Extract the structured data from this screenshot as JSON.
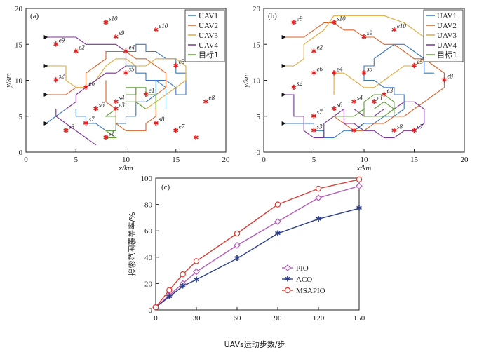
{
  "panel_labels": {
    "a": "(a)",
    "b": "(b)",
    "c": "(c)"
  },
  "x_axis_label": "x/km",
  "y_axis_label": "y/km",
  "legend_items": [
    "UAV1",
    "UAV2",
    "UAV3",
    "UAV4",
    "目标1"
  ],
  "series_colors": {
    "UAV1": "#3b78c2",
    "UAV2": "#d9622b",
    "UAV3": "#e2a93b",
    "UAV4": "#7b3296",
    "目标1": "#5f9e37"
  },
  "chart_data": [
    {
      "type": "line",
      "panel": "(a)",
      "xlim": [
        0,
        20
      ],
      "ylim": [
        0,
        20
      ],
      "xticks": [
        0,
        5,
        10,
        15,
        20
      ],
      "yticks": [
        0,
        5,
        10,
        15,
        20
      ],
      "xlabel": "x/km",
      "ylabel": "y/km",
      "legend_position": "top-right",
      "markers": [
        {
          "label": "s10",
          "x": 8,
          "y": 18
        },
        {
          "label": "s9",
          "x": 9,
          "y": 16
        },
        {
          "label": "e10",
          "x": 13,
          "y": 17
        },
        {
          "label": "e9",
          "x": 3,
          "y": 15
        },
        {
          "label": "e2",
          "x": 5,
          "y": 14
        },
        {
          "label": "e4",
          "x": 10,
          "y": 14
        },
        {
          "label": "e5",
          "x": 15,
          "y": 12
        },
        {
          "label": "s5",
          "x": 10,
          "y": 11
        },
        {
          "label": "s2",
          "x": 3,
          "y": 10
        },
        {
          "label": "e6",
          "x": 6,
          "y": 9
        },
        {
          "label": "e1",
          "x": 12,
          "y": 8
        },
        {
          "label": "e8",
          "x": 18,
          "y": 7
        },
        {
          "label": "s4",
          "x": 9,
          "y": 7
        },
        {
          "label": "s6",
          "x": 7,
          "y": 6
        },
        {
          "label": "e3",
          "x": 9,
          "y": 6
        },
        {
          "label": "s7",
          "x": 6,
          "y": 4
        },
        {
          "label": "s8",
          "x": 13,
          "y": 4
        },
        {
          "label": "s3",
          "x": 4,
          "y": 3
        },
        {
          "label": "e7",
          "x": 15,
          "y": 3
        },
        {
          "label": "s1",
          "x": 8,
          "y": 2
        },
        {
          "label": "",
          "x": 17,
          "y": 2
        }
      ],
      "series": [
        {
          "name": "UAV1",
          "x": [
            2,
            4,
            5,
            5,
            6,
            6,
            7,
            8,
            9,
            9,
            10,
            10,
            11,
            11,
            12,
            13,
            13,
            14,
            15,
            15,
            16,
            16,
            15,
            15,
            14,
            13,
            12,
            12,
            11,
            11,
            10,
            10,
            11,
            11,
            12,
            12,
            13,
            14,
            14
          ],
          "y": [
            4,
            6,
            6,
            5,
            5,
            4,
            4,
            3,
            3,
            4,
            4,
            5,
            5,
            7,
            7,
            8,
            10,
            10,
            9,
            8,
            8,
            11,
            11,
            13,
            13,
            14,
            14,
            15,
            15,
            14,
            14,
            12,
            12,
            11,
            11,
            10,
            10,
            9,
            6
          ]
        },
        {
          "name": "UAV2",
          "x": [
            2,
            4,
            5,
            6,
            6,
            7,
            8,
            8,
            9,
            10,
            11,
            12,
            13,
            14,
            14,
            13,
            13,
            12,
            12,
            11,
            10,
            9,
            9,
            8,
            8
          ],
          "y": [
            8,
            8,
            9,
            9,
            11,
            12,
            13,
            14,
            14,
            14,
            13,
            13,
            12,
            11,
            9,
            8,
            5,
            4,
            3,
            3,
            3,
            4,
            6,
            7,
            10
          ]
        },
        {
          "name": "UAV3",
          "x": [
            2,
            4,
            4,
            5,
            6,
            7,
            8,
            9,
            10,
            11,
            12,
            13,
            15,
            16,
            16,
            15,
            14,
            13,
            12,
            11,
            11
          ],
          "y": [
            12,
            12,
            10,
            9,
            9,
            10,
            12,
            13,
            13,
            12,
            12,
            13,
            13,
            12,
            10,
            9,
            8,
            7,
            6,
            7,
            9
          ]
        },
        {
          "name": "UAV4",
          "x": [
            2,
            5,
            6,
            7,
            9,
            10,
            10,
            9,
            8,
            6,
            5,
            5,
            4,
            3,
            3,
            4,
            5,
            6,
            7
          ],
          "y": [
            16,
            16,
            15,
            15,
            15,
            14,
            12,
            11,
            11,
            9,
            8,
            7,
            6,
            6,
            5,
            4,
            3,
            2,
            1
          ]
        },
        {
          "name": "目标1",
          "x": [
            8,
            9,
            8,
            9,
            9,
            8,
            9,
            10,
            10,
            11,
            11,
            12,
            12,
            13,
            13,
            12,
            11,
            10,
            10,
            11
          ],
          "y": [
            2,
            2,
            3,
            3,
            5,
            5,
            6,
            6,
            8,
            8,
            9,
            9,
            8,
            8,
            6,
            6,
            7,
            7,
            9,
            9
          ]
        }
      ]
    },
    {
      "type": "line",
      "panel": "(b)",
      "xlim": [
        0,
        20
      ],
      "ylim": [
        0,
        20
      ],
      "xticks": [
        0,
        5,
        10,
        15,
        20
      ],
      "yticks": [
        0,
        5,
        10,
        15,
        20
      ],
      "xlabel": "x/km",
      "ylabel": "y/km",
      "legend_position": "top-right",
      "markers": [
        {
          "label": "s10",
          "x": 7,
          "y": 18
        },
        {
          "label": "e9",
          "x": 3,
          "y": 18
        },
        {
          "label": "e10",
          "x": 13,
          "y": 17
        },
        {
          "label": "s9",
          "x": 10,
          "y": 16
        },
        {
          "label": "e2",
          "x": 5,
          "y": 14
        },
        {
          "label": "e5",
          "x": 15,
          "y": 12
        },
        {
          "label": "e6",
          "x": 5,
          "y": 11
        },
        {
          "label": "e4",
          "x": 7,
          "y": 11
        },
        {
          "label": "s5",
          "x": 10,
          "y": 11
        },
        {
          "label": "e8",
          "x": 18,
          "y": 10
        },
        {
          "label": "s2",
          "x": 3,
          "y": 9
        },
        {
          "label": "s4",
          "x": 9,
          "y": 7
        },
        {
          "label": "e1",
          "x": 11,
          "y": 7
        },
        {
          "label": "e3",
          "x": 12,
          "y": 8
        },
        {
          "label": "s6",
          "x": 7,
          "y": 6
        },
        {
          "label": "s7",
          "x": 5,
          "y": 5
        },
        {
          "label": "s3",
          "x": 5,
          "y": 3
        },
        {
          "label": "s1",
          "x": 9,
          "y": 3
        },
        {
          "label": "s8",
          "x": 13,
          "y": 3
        },
        {
          "label": "e7",
          "x": 15,
          "y": 3
        }
      ],
      "series": [
        {
          "name": "UAV1",
          "x": [
            2,
            5,
            5,
            6,
            6,
            7,
            8,
            9,
            10,
            11,
            12,
            13,
            14,
            14,
            13,
            13,
            12,
            11,
            10,
            10,
            11,
            11,
            12,
            13,
            14,
            15,
            16,
            16,
            17
          ],
          "y": [
            4,
            4,
            3,
            3,
            2,
            2,
            3,
            3,
            4,
            4,
            5,
            5,
            6,
            8,
            8,
            9,
            9,
            10,
            10,
            12,
            12,
            13,
            14,
            15,
            15,
            14,
            13,
            11,
            11
          ]
        },
        {
          "name": "UAV2",
          "x": [
            2,
            4,
            5,
            6,
            7,
            8,
            9,
            10,
            11,
            12,
            13,
            14,
            15,
            16,
            17,
            18,
            18,
            17,
            16,
            15,
            14,
            13,
            12,
            11,
            10,
            9,
            8,
            7
          ],
          "y": [
            16,
            16,
            17,
            18,
            18,
            17,
            17,
            16,
            16,
            15,
            15,
            14,
            13,
            13,
            12,
            11,
            9,
            8,
            7,
            6,
            5,
            5,
            4,
            4,
            3,
            3,
            4,
            5
          ]
        },
        {
          "name": "UAV3",
          "x": [
            2,
            3,
            4,
            4,
            5,
            6,
            7,
            8,
            10,
            12,
            14,
            15,
            16,
            16,
            15,
            14,
            13,
            12,
            11,
            10,
            9,
            8,
            7,
            7
          ],
          "y": [
            12,
            12,
            13,
            15,
            16,
            17,
            19,
            19,
            19,
            19,
            18,
            17,
            16,
            13,
            12,
            12,
            11,
            10,
            9,
            9,
            10,
            11,
            11,
            8
          ]
        },
        {
          "name": "UAV4",
          "x": [
            2,
            3,
            3,
            4,
            4,
            5,
            6,
            6,
            7,
            8,
            9,
            10,
            11,
            12,
            13,
            14,
            15,
            16,
            16,
            15,
            14,
            13,
            12,
            11,
            10,
            9,
            8,
            8
          ],
          "y": [
            8,
            8,
            5,
            5,
            3,
            2,
            2,
            4,
            5,
            6,
            6,
            5,
            5,
            6,
            6,
            7,
            7,
            6,
            4,
            3,
            3,
            2,
            2,
            3,
            3,
            4,
            4,
            6
          ]
        },
        {
          "name": "目标1",
          "x": [
            7,
            9,
            10,
            11,
            12,
            13,
            12,
            11,
            10,
            10,
            11,
            12,
            13,
            13
          ],
          "y": [
            5,
            5,
            6,
            6,
            7,
            6,
            5,
            5,
            5,
            7,
            8,
            8,
            7,
            5
          ]
        }
      ]
    },
    {
      "type": "line",
      "panel": "(c)",
      "xlim": [
        0,
        150
      ],
      "ylim": [
        0,
        100
      ],
      "xticks": [
        0,
        30,
        60,
        90,
        120,
        150
      ],
      "yticks": [
        0,
        20,
        40,
        60,
        80,
        100
      ],
      "xlabel": "UAVs运动步数/步",
      "ylabel": "搜索范围覆盖率/%",
      "legend_position": "bottom-right",
      "series": [
        {
          "name": "PIO",
          "marker": "diamond",
          "x": [
            0,
            10,
            20,
            30,
            60,
            90,
            120,
            150
          ],
          "values": [
            2,
            11,
            20,
            29,
            49,
            67,
            85,
            94
          ]
        },
        {
          "name": "ACO",
          "marker": "star",
          "x": [
            0,
            10,
            20,
            30,
            60,
            90,
            120,
            150
          ],
          "values": [
            2,
            10,
            18,
            23,
            39,
            58,
            69,
            77
          ]
        },
        {
          "name": "MSAPIO",
          "marker": "circle",
          "x": [
            0,
            10,
            20,
            30,
            60,
            90,
            120,
            150
          ],
          "values": [
            2,
            15,
            27,
            37,
            58,
            80,
            92,
            99
          ]
        }
      ],
      "series_colors": {
        "PIO": "#b45bb8",
        "ACO": "#2b3f8c",
        "MSAPIO": "#d93b35"
      }
    }
  ]
}
